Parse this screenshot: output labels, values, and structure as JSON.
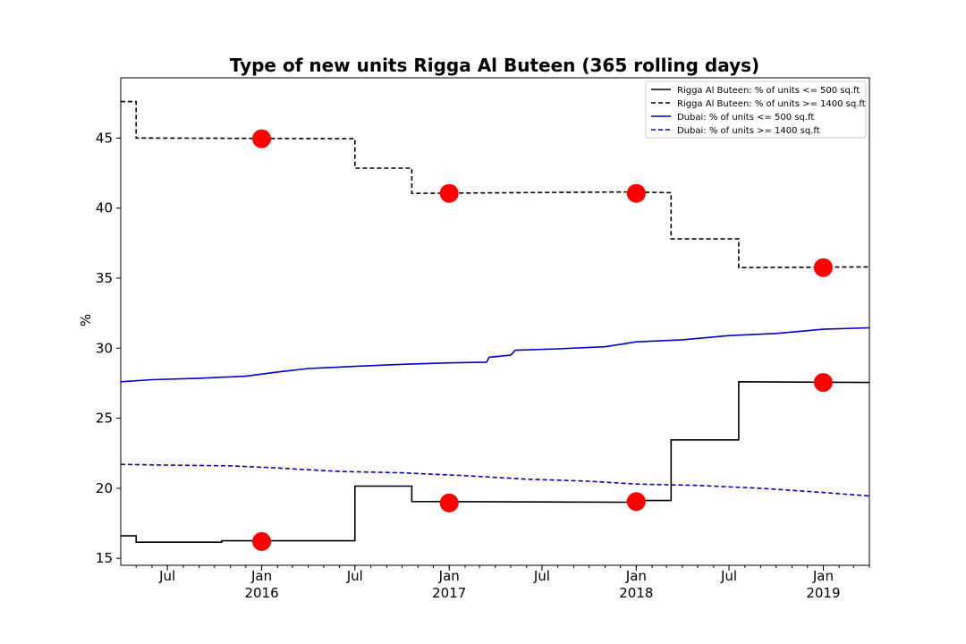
{
  "chart_data": {
    "type": "line",
    "title": "Type of new units Rigga Al Buteen (365 rolling days)",
    "xlabel": "",
    "ylabel": "%",
    "xlim": [
      "2015-04-01",
      "2019-04-01"
    ],
    "ylim": [
      14.5,
      49.3
    ],
    "grid": false,
    "legend_position": "top-right",
    "y_ticks": [
      15,
      20,
      25,
      30,
      35,
      40,
      45
    ],
    "x_ticks": [
      {
        "date": "2015-07-01",
        "label": "Jul",
        "year": ""
      },
      {
        "date": "2016-01-01",
        "label": "Jan",
        "year": "2016"
      },
      {
        "date": "2016-07-01",
        "label": "Jul",
        "year": ""
      },
      {
        "date": "2017-01-01",
        "label": "Jan",
        "year": "2017"
      },
      {
        "date": "2017-07-01",
        "label": "Jul",
        "year": ""
      },
      {
        "date": "2018-01-01",
        "label": "Jan",
        "year": "2018"
      },
      {
        "date": "2018-07-01",
        "label": "Jul",
        "year": ""
      },
      {
        "date": "2019-01-01",
        "label": "Jan",
        "year": "2019"
      }
    ],
    "series": [
      {
        "name": "Rigga Al Buteen: % of units <= 500 sq.ft",
        "color": "#000000",
        "dashed": false,
        "step": true,
        "points": [
          [
            "2015-04-01",
            16.6
          ],
          [
            "2015-05-01",
            16.6
          ],
          [
            "2015-05-01",
            16.15
          ],
          [
            "2015-10-15",
            16.15
          ],
          [
            "2015-10-15",
            16.25
          ],
          [
            "2016-07-01",
            16.25
          ],
          [
            "2016-07-01",
            20.15
          ],
          [
            "2016-10-20",
            20.15
          ],
          [
            "2016-10-20",
            19.05
          ],
          [
            "2017-12-15",
            19.0
          ],
          [
            "2017-12-15",
            19.12
          ],
          [
            "2018-03-10",
            19.12
          ],
          [
            "2018-03-10",
            23.45
          ],
          [
            "2018-07-20",
            23.45
          ],
          [
            "2018-07-20",
            27.6
          ],
          [
            "2019-04-01",
            27.55
          ]
        ]
      },
      {
        "name": "Rigga Al Buteen: % of units >= 1400 sq.ft",
        "color": "#000000",
        "dashed": true,
        "step": true,
        "points": [
          [
            "2015-04-01",
            47.6
          ],
          [
            "2015-05-01",
            47.6
          ],
          [
            "2015-05-01",
            45.0
          ],
          [
            "2016-07-01",
            44.95
          ],
          [
            "2016-07-01",
            42.85
          ],
          [
            "2016-10-20",
            42.85
          ],
          [
            "2016-10-20",
            41.05
          ],
          [
            "2017-12-15",
            41.15
          ],
          [
            "2018-03-10",
            41.1
          ],
          [
            "2018-03-10",
            37.8
          ],
          [
            "2018-07-20",
            37.8
          ],
          [
            "2018-07-20",
            35.75
          ],
          [
            "2019-04-01",
            35.8
          ]
        ]
      },
      {
        "name": "Dubai: % of units <= 500 sq.ft",
        "color": "#0000cc",
        "dashed": false,
        "step": false,
        "points": [
          [
            "2015-04-01",
            27.6
          ],
          [
            "2015-06-01",
            27.75
          ],
          [
            "2015-09-01",
            27.85
          ],
          [
            "2015-12-01",
            28.0
          ],
          [
            "2016-02-01",
            28.3
          ],
          [
            "2016-04-01",
            28.55
          ],
          [
            "2016-07-01",
            28.7
          ],
          [
            "2016-10-01",
            28.85
          ],
          [
            "2017-01-01",
            28.95
          ],
          [
            "2017-03-15",
            29.0
          ],
          [
            "2017-03-20",
            29.35
          ],
          [
            "2017-05-01",
            29.5
          ],
          [
            "2017-05-10",
            29.85
          ],
          [
            "2017-08-01",
            29.95
          ],
          [
            "2017-11-01",
            30.1
          ],
          [
            "2018-01-01",
            30.45
          ],
          [
            "2018-04-01",
            30.6
          ],
          [
            "2018-07-01",
            30.9
          ],
          [
            "2018-10-01",
            31.05
          ],
          [
            "2019-01-01",
            31.35
          ],
          [
            "2019-04-01",
            31.45
          ]
        ]
      },
      {
        "name": "Dubai: % of units >= 1400 sq.ft",
        "color": "#0000cc",
        "dashed": true,
        "step": false,
        "points": [
          [
            "2015-04-01",
            21.7
          ],
          [
            "2015-07-01",
            21.65
          ],
          [
            "2015-11-01",
            21.6
          ],
          [
            "2016-02-01",
            21.45
          ],
          [
            "2016-06-01",
            21.2
          ],
          [
            "2016-10-01",
            21.1
          ],
          [
            "2017-02-01",
            20.9
          ],
          [
            "2017-06-01",
            20.65
          ],
          [
            "2017-10-01",
            20.5
          ],
          [
            "2018-01-01",
            20.3
          ],
          [
            "2018-05-01",
            20.2
          ],
          [
            "2018-09-01",
            20.0
          ],
          [
            "2019-01-01",
            19.7
          ],
          [
            "2019-04-01",
            19.45
          ]
        ]
      }
    ],
    "markers": {
      "color": "#ff0000",
      "points": [
        [
          "2016-01-01",
          44.95
        ],
        [
          "2017-01-01",
          41.05
        ],
        [
          "2018-01-01",
          41.05
        ],
        [
          "2019-01-01",
          35.75
        ],
        [
          "2019-01-01",
          27.55
        ],
        [
          "2016-01-01",
          16.2
        ],
        [
          "2017-01-01",
          18.95
        ],
        [
          "2018-01-01",
          19.05
        ]
      ]
    }
  }
}
